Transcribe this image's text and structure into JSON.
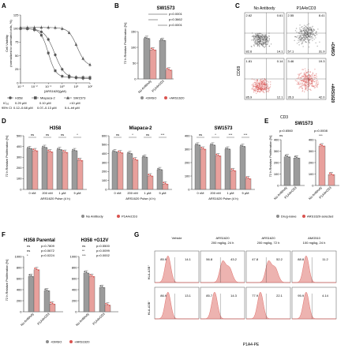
{
  "panels": {
    "A": {
      "label": "A",
      "ylabel_lines": [
        "Cell Viability",
        "(normalized to untreated cells, %)"
      ],
      "xlabel": "[ARS1620](μM)",
      "yticks": [
        "0",
        "25",
        "50",
        "75",
        "100",
        "125"
      ],
      "xticks": [
        "10⁻³",
        "10⁻²",
        "10⁻¹",
        "10⁰",
        "10¹",
        "10²"
      ],
      "legend": [
        "H358",
        "Miapaca-2",
        "SW1573"
      ],
      "ic50_label": "IC₅₀",
      "ci_label": "95% CI",
      "ic50": [
        "0.29 μM",
        "0.10 μM",
        ">10 μM"
      ],
      "ci": [
        "0.12–0.68 μM",
        "0.07–0.13 μM",
        "5.4–inf μM"
      ]
    },
    "B": {
      "label": "B",
      "title": "SW1573",
      "ylabel": "72 h Relative Proliferation [%]",
      "yticks": [
        "0",
        "50",
        "100",
        "150"
      ],
      "pvals": [
        "p<0.0001",
        "p=0.3662",
        "p<0.0001"
      ],
      "categories": [
        "No Antibody",
        "P1A4xCD3"
      ],
      "legend": [
        "+DMSO",
        "+ARS1620"
      ]
    },
    "C": {
      "label": "C",
      "col_titles": [
        "No Antibody",
        "P1A4xCD3"
      ],
      "row_labels": [
        "+DMSO",
        "+ARS1620"
      ],
      "ylabel": "CD69",
      "xlabel": "CD3",
      "quad_values": [
        [
          "2.62",
          "0.61",
          "82.6",
          "14.1"
        ],
        [
          "2.55",
          "8.41",
          "57.1",
          "31.9"
        ],
        [
          "1.81",
          "0.14",
          "85.9",
          "12.1"
        ],
        [
          "3.46",
          "19.3",
          "35.3",
          "42.0"
        ]
      ]
    },
    "D": {
      "label": "D",
      "titles": [
        "H358",
        "Miapaca-2",
        "SW1573"
      ],
      "ylabel": "72 h Relative Proliferation [%]",
      "xlabel": "ARS1620 Pulse (4 h)",
      "xticks": [
        "0 nM",
        "200 nM",
        "1 μM",
        "5 μM"
      ],
      "yticks_a": [
        "0",
        "100",
        "200",
        "300",
        "400",
        "500"
      ],
      "yticks_b": [
        "0",
        "100",
        "200",
        "300",
        "400",
        "500",
        "600"
      ],
      "yticks_c": [
        "0",
        "100",
        "200",
        "300",
        "400"
      ],
      "sig": [
        [
          "ns",
          "ns",
          "ns",
          "*"
        ],
        [
          "ns",
          "*",
          "ns",
          "***"
        ],
        [
          "ns",
          "*",
          "***",
          "***"
        ]
      ],
      "legend": [
        "No Antibody",
        "P1A4xCD3"
      ]
    },
    "E": {
      "label": "E",
      "title": "SW1573",
      "ylabel": "72 h Relative Proliferation [%]",
      "pvals": [
        "p=0.6560",
        "p=0.0008"
      ],
      "sig": [
        "ns",
        "***"
      ],
      "yticks": [
        "0",
        "100",
        "200",
        "300",
        "400"
      ],
      "categories": [
        "No Antibody",
        "P1A4xCD3"
      ],
      "legend": [
        "Drug-naive",
        "ARS1620-selected"
      ]
    },
    "F": {
      "label": "F",
      "titles": [
        "H358 Parental",
        "H358 +G12V"
      ],
      "ylabel": "72 h Relative Proliferation [%]",
      "yticks": [
        "0",
        "200",
        "400",
        "600",
        "800",
        "1000"
      ],
      "pvals_a": [
        "p=0.7809",
        "p=0.0672",
        "p=0.0224"
      ],
      "pvals_b": [
        "p=0.5500",
        "p=0.0099",
        "p=0.0002"
      ],
      "sig_a": [
        "ns",
        "ns",
        "*"
      ],
      "sig_b": [
        "ns",
        "**",
        "***"
      ],
      "categories": [
        "No Antibody",
        "P1A4xCD3"
      ],
      "legend": [
        "+DMSO",
        "+ARS1620"
      ]
    },
    "G": {
      "label": "G",
      "col_titles": [
        [
          "Vehicle"
        ],
        [
          "ARS1620",
          "200 mg/kg, 24 h"
        ],
        [
          "ARS1620",
          "200 mg/kg, 72 h"
        ],
        [
          "AMG510",
          "100 mg/kg, 24 h"
        ]
      ],
      "row_labels": [
        "HLA-A3B⁺",
        "HLA-A3B⁻"
      ],
      "xlabel": "P1A4-PE",
      "values": [
        [
          "85.9",
          "14.1",
          "56.8",
          "43.2",
          "47.8",
          "52.2",
          "88.8",
          "11.2"
        ],
        [
          "86.9",
          "13.1",
          "85.7",
          "14.3",
          "77.9",
          "22.1",
          "95.9",
          "4.14"
        ]
      ]
    }
  },
  "colors": {
    "grey": "#8c8c8c",
    "red": "#d9534f",
    "lightred": "#e8a09c",
    "axis": "#333333"
  }
}
